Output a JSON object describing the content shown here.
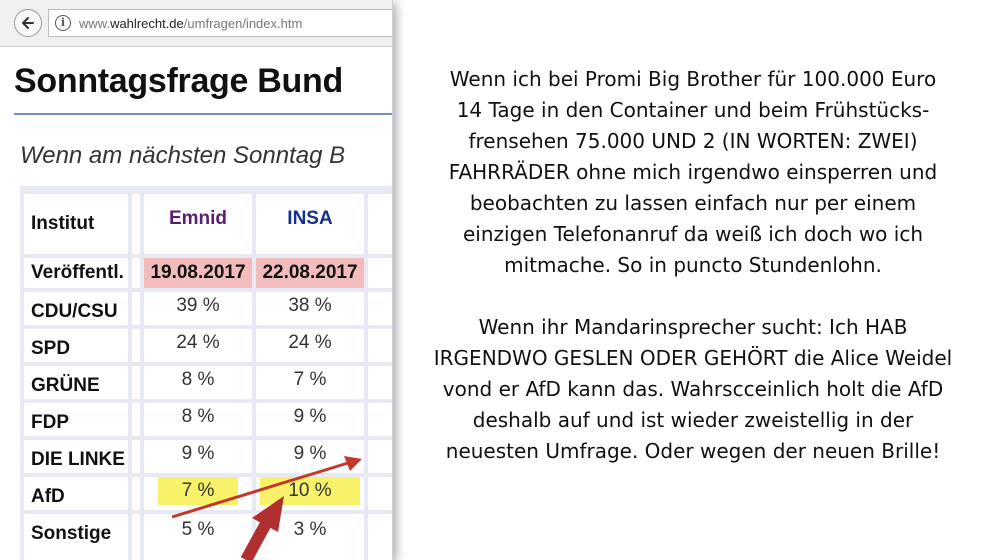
{
  "browser": {
    "url_prefix": "www.",
    "url_domain": "wahlrecht.de",
    "url_path": "/umfragen/index.htm"
  },
  "page": {
    "heading": "Sonntagsfrage Bund",
    "subheading": "Wenn am nächsten Sonntag B"
  },
  "table": {
    "header_label": "Institut",
    "institutes": [
      "Emnid",
      "INSA"
    ],
    "date_label": "Veröffentl.",
    "dates": [
      "19.08.2017",
      "22.08.2017"
    ],
    "rows": [
      {
        "party": "CDU/CSU",
        "emnid": "39 %",
        "insa": "38 %"
      },
      {
        "party": "SPD",
        "emnid": "24 %",
        "insa": "24 %"
      },
      {
        "party": "GRÜNE",
        "emnid": "8 %",
        "insa": "7 %"
      },
      {
        "party": "FDP",
        "emnid": "8 %",
        "insa": "9 %"
      },
      {
        "party": "DIE LINKE",
        "emnid": "9 %",
        "insa": "9 %"
      },
      {
        "party": "AfD",
        "emnid": "7 %",
        "insa": "10 %"
      },
      {
        "party": "Sonstige",
        "emnid": "5 %",
        "insa": "3 %"
      }
    ],
    "highlight_color": "#f7f26a",
    "date_color": "#f3bcbc"
  },
  "annotation": {
    "arrow_color": "#c0392b"
  },
  "comment": {
    "paragraph1": [
      "Wenn ich bei Promi Big Brother für 100.000 Euro",
      "14 Tage in den Container und beim Frühstücks-",
      "frensehen 75.000  UND 2 (IN WORTEN: ZWEI)",
      "FAHRRÄDER ohne mich irgendwo einsperren und",
      "beobachten zu lassen einfach nur per einem",
      "einzigen Telefonanruf da weiß ich doch wo ich",
      "mitmache. So in puncto Stundenlohn."
    ],
    "paragraph2": [
      "Wenn ihr Mandarinsprecher sucht: Ich HAB",
      "IRGENDWO GESLEN ODER GEHÖRT  die Alice Weidel",
      "vond er AfD kann das. Wahrscceinlich holt die AfD",
      "deshalb auf und  ist wieder zweistellig in der",
      "neuesten Umfrage. Oder wegen der neuen Brille!"
    ]
  }
}
